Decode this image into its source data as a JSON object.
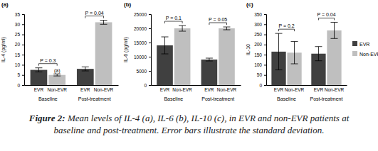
{
  "chart_data": [
    {
      "type": "bar",
      "title": "(a)",
      "y_label": "IL-4 (pg/ml)",
      "categories": [
        "Baseline",
        "Post-treatment"
      ],
      "series": [
        {
          "name": "EVR",
          "color": "#404040",
          "values": [
            7.5,
            8
          ],
          "errors": [
            1,
            1
          ]
        },
        {
          "name": "Non-EVR",
          "color": "#bfbfbf",
          "values": [
            5,
            31
          ],
          "errors": [
            0.5,
            1
          ]
        }
      ],
      "ylim": [
        0,
        35
      ],
      "yticks": [
        0,
        5,
        10,
        15,
        20,
        25,
        30,
        35
      ],
      "annotations": [
        {
          "text": "P = 0.3",
          "category": 0
        },
        {
          "text": "P = 0.04",
          "category": 1
        },
        {
          "text": "(a)",
          "category": 0,
          "series": 1
        }
      ]
    },
    {
      "type": "bar",
      "title": "(b)",
      "y_label": "IL-6 (pg/ml)",
      "categories": [
        "Baseline",
        "Post-treatment"
      ],
      "series": [
        {
          "name": "EVR",
          "color": "#404040",
          "values": [
            14000,
            9000
          ],
          "errors": [
            3000,
            500
          ]
        },
        {
          "name": "Non-EVR",
          "color": "#bfbfbf",
          "values": [
            20000,
            20000
          ],
          "errors": [
            1000,
            500
          ]
        }
      ],
      "ylim": [
        0,
        25000
      ],
      "yticks": [
        0,
        5000,
        10000,
        15000,
        20000,
        25000
      ],
      "annotations": [
        {
          "text": "P = 0.1",
          "category": 0
        },
        {
          "text": "P = 0.05",
          "category": 1
        }
      ]
    },
    {
      "type": "bar",
      "title": "(c)",
      "y_label": "IL-10",
      "categories": [
        "Baseline",
        "Post-treatment"
      ],
      "series": [
        {
          "name": "EVR",
          "color": "#404040",
          "values": [
            165,
            155
          ],
          "errors": [
            90,
            35
          ]
        },
        {
          "name": "Non-EVR",
          "color": "#bfbfbf",
          "values": [
            160,
            270
          ],
          "errors": [
            55,
            40
          ]
        }
      ],
      "ylim": [
        0,
        350
      ],
      "yticks": [
        0,
        50,
        100,
        150,
        200,
        250,
        300,
        350
      ],
      "legend": "right",
      "annotations": [
        {
          "text": "P = 0.2",
          "category": 0
        },
        {
          "text": "P = 0.04",
          "category": 1
        }
      ]
    }
  ],
  "caption": {
    "label": "Figure 2:",
    "text": "Mean levels of IL-4 (a), IL-6 (b), IL-10 (c), in EVR and non-EVR patients at baseline and post-treatment. Error bars illustrate the standard deviation."
  }
}
